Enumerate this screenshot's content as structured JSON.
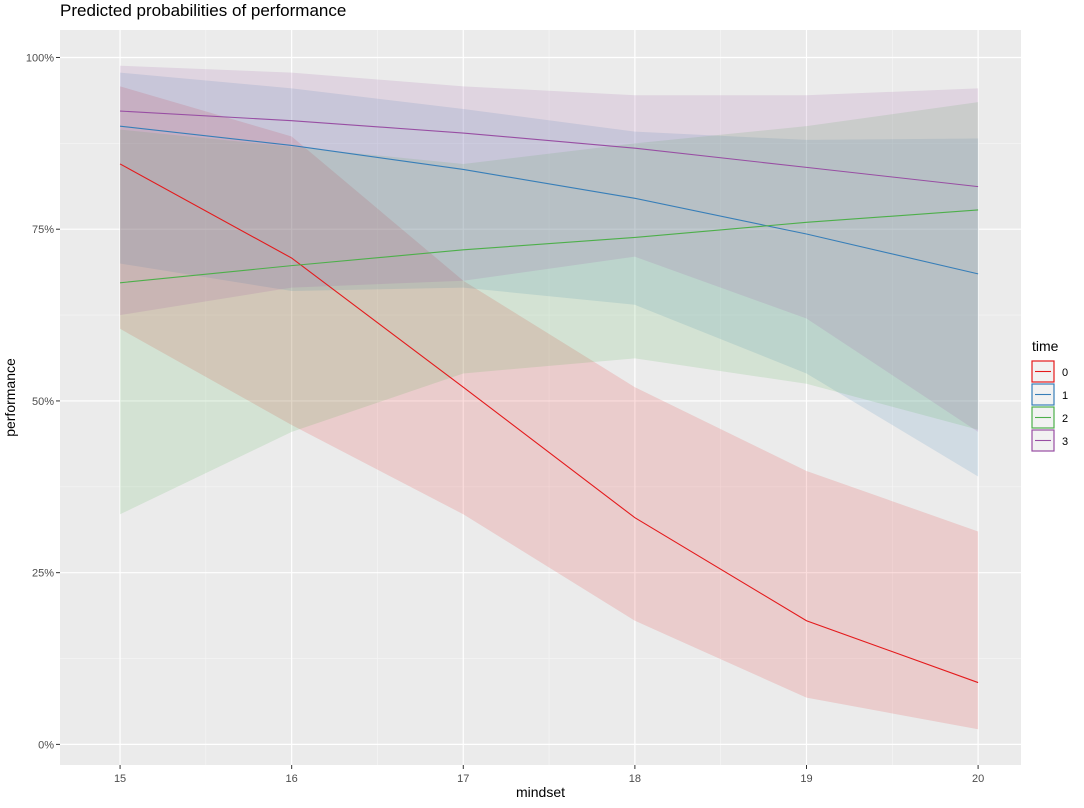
{
  "chart_data": {
    "type": "line",
    "title": "Predicted probabilities of performance",
    "xlabel": "mindset",
    "ylabel": "performance",
    "xlim": [
      14.65,
      20.25
    ],
    "ylim": [
      -0.03,
      1.04
    ],
    "x_ticks": [
      15,
      16,
      17,
      18,
      19,
      20
    ],
    "x_tick_labels": [
      "15",
      "16",
      "17",
      "18",
      "19",
      "20"
    ],
    "y_ticks": [
      0,
      0.25,
      0.5,
      0.75,
      1.0
    ],
    "y_tick_labels": [
      "0%",
      "25%",
      "50%",
      "75%",
      "100%"
    ],
    "grid": true,
    "legend": {
      "title": "time",
      "position": "right"
    },
    "x": [
      15,
      16,
      17,
      18,
      19,
      20
    ],
    "series": [
      {
        "name": "0",
        "color": "#e41a1c",
        "values": [
          0.845,
          0.708,
          0.52,
          0.33,
          0.18,
          0.09
        ],
        "lower": [
          0.605,
          0.465,
          0.335,
          0.18,
          0.068,
          0.022
        ],
        "upper": [
          0.958,
          0.885,
          0.675,
          0.52,
          0.398,
          0.31
        ]
      },
      {
        "name": "1",
        "color": "#377eb8",
        "values": [
          0.9,
          0.872,
          0.837,
          0.795,
          0.743,
          0.685
        ],
        "lower": [
          0.7,
          0.66,
          0.665,
          0.64,
          0.54,
          0.39
        ],
        "upper": [
          0.978,
          0.955,
          0.925,
          0.892,
          0.88,
          0.882
        ]
      },
      {
        "name": "2",
        "color": "#4daf4a",
        "values": [
          0.672,
          0.697,
          0.72,
          0.738,
          0.76,
          0.778
        ],
        "lower": [
          0.335,
          0.455,
          0.54,
          0.562,
          0.525,
          0.458
        ],
        "upper": [
          0.895,
          0.87,
          0.845,
          0.875,
          0.9,
          0.935
        ]
      },
      {
        "name": "3",
        "color": "#984ea3",
        "values": [
          0.922,
          0.908,
          0.89,
          0.868,
          0.84,
          0.812
        ],
        "lower": [
          0.625,
          0.665,
          0.675,
          0.71,
          0.62,
          0.455
        ],
        "upper": [
          0.988,
          0.978,
          0.958,
          0.945,
          0.945,
          0.955
        ]
      }
    ]
  }
}
